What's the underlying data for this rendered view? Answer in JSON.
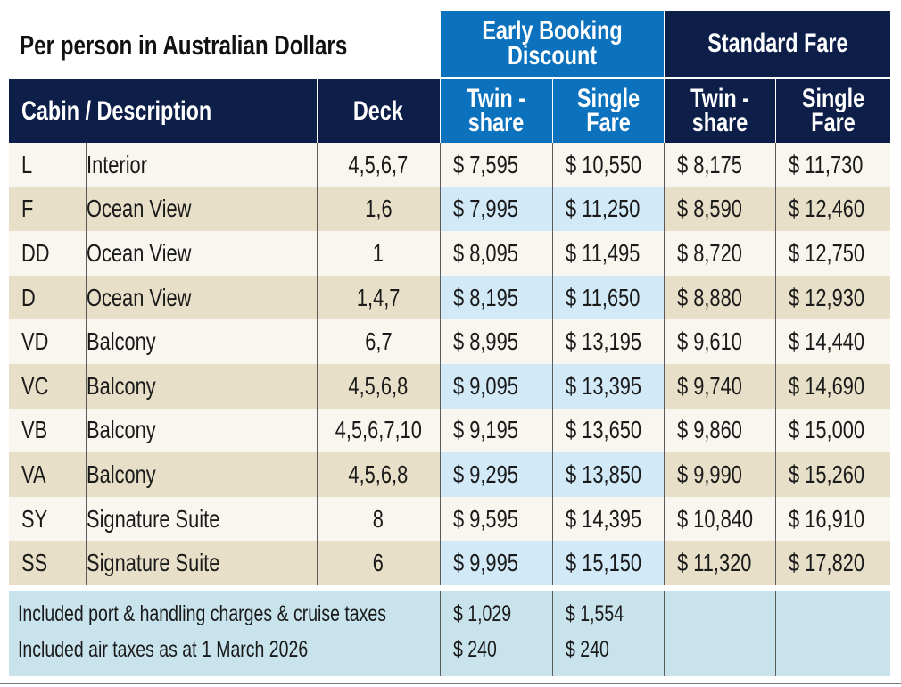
{
  "header": {
    "title": "Per person in Australian Dollars",
    "group_early": "Early Booking Discount",
    "group_standard": "Standard Fare"
  },
  "columns": {
    "cabin_description": "Cabin / Description",
    "deck": "Deck",
    "twin_share": "Twin -share",
    "single_fare": "Single Fare"
  },
  "rows": [
    {
      "cabin": "L",
      "description": "Interior",
      "deck": "4,5,6,7",
      "ebd_twin": "$ 7,595",
      "ebd_single": "$ 10,550",
      "std_twin": "$ 8,175",
      "std_single": "$ 11,730"
    },
    {
      "cabin": "F",
      "description": "Ocean View",
      "deck": "1,6",
      "ebd_twin": "$ 7,995",
      "ebd_single": "$ 11,250",
      "std_twin": "$ 8,590",
      "std_single": "$ 12,460"
    },
    {
      "cabin": "DD",
      "description": "Ocean View",
      "deck": "1",
      "ebd_twin": "$ 8,095",
      "ebd_single": "$ 11,495",
      "std_twin": "$ 8,720",
      "std_single": "$ 12,750"
    },
    {
      "cabin": "D",
      "description": "Ocean View",
      "deck": "1,4,7",
      "ebd_twin": "$ 8,195",
      "ebd_single": "$ 11,650",
      "std_twin": "$ 8,880",
      "std_single": "$ 12,930"
    },
    {
      "cabin": "VD",
      "description": "Balcony",
      "deck": "6,7",
      "ebd_twin": "$ 8,995",
      "ebd_single": "$ 13,195",
      "std_twin": "$ 9,610",
      "std_single": "$ 14,440"
    },
    {
      "cabin": "VC",
      "description": "Balcony",
      "deck": "4,5,6,8",
      "ebd_twin": "$ 9,095",
      "ebd_single": "$ 13,395",
      "std_twin": "$ 9,740",
      "std_single": "$ 14,690"
    },
    {
      "cabin": "VB",
      "description": "Balcony",
      "deck": "4,5,6,7,10",
      "ebd_twin": "$ 9,195",
      "ebd_single": "$ 13,650",
      "std_twin": "$ 9,860",
      "std_single": "$ 15,000"
    },
    {
      "cabin": "VA",
      "description": "Balcony",
      "deck": "4,5,6,8",
      "ebd_twin": "$ 9,295",
      "ebd_single": "$ 13,850",
      "std_twin": "$ 9,990",
      "std_single": "$ 15,260"
    },
    {
      "cabin": "SY",
      "description": "Signature Suite",
      "deck": "8",
      "ebd_twin": "$ 9,595",
      "ebd_single": "$ 14,395",
      "std_twin": "$ 10,840",
      "std_single": "$ 16,910"
    },
    {
      "cabin": "SS",
      "description": "Signature Suite",
      "deck": "6",
      "ebd_twin": "$ 9,995",
      "ebd_single": "$ 15,150",
      "std_twin": "$ 11,320",
      "std_single": "$ 17,820"
    }
  ],
  "footer": {
    "port_label": "Included port & handling charges & cruise taxes",
    "port_twin": "$ 1,029",
    "port_single": "$ 1,554",
    "air_label": "Included air taxes as at 1 March 2026",
    "air_twin": "$ 240",
    "air_single": "$ 240"
  },
  "colors": {
    "navy": "#0d1f49",
    "early_blue": "#0c72bd",
    "row_cream": "#f8f6ef",
    "row_tan": "#e7dfc7",
    "row_light_blue": "#d2e9f8",
    "footer_blue": "#c8e3ec"
  }
}
